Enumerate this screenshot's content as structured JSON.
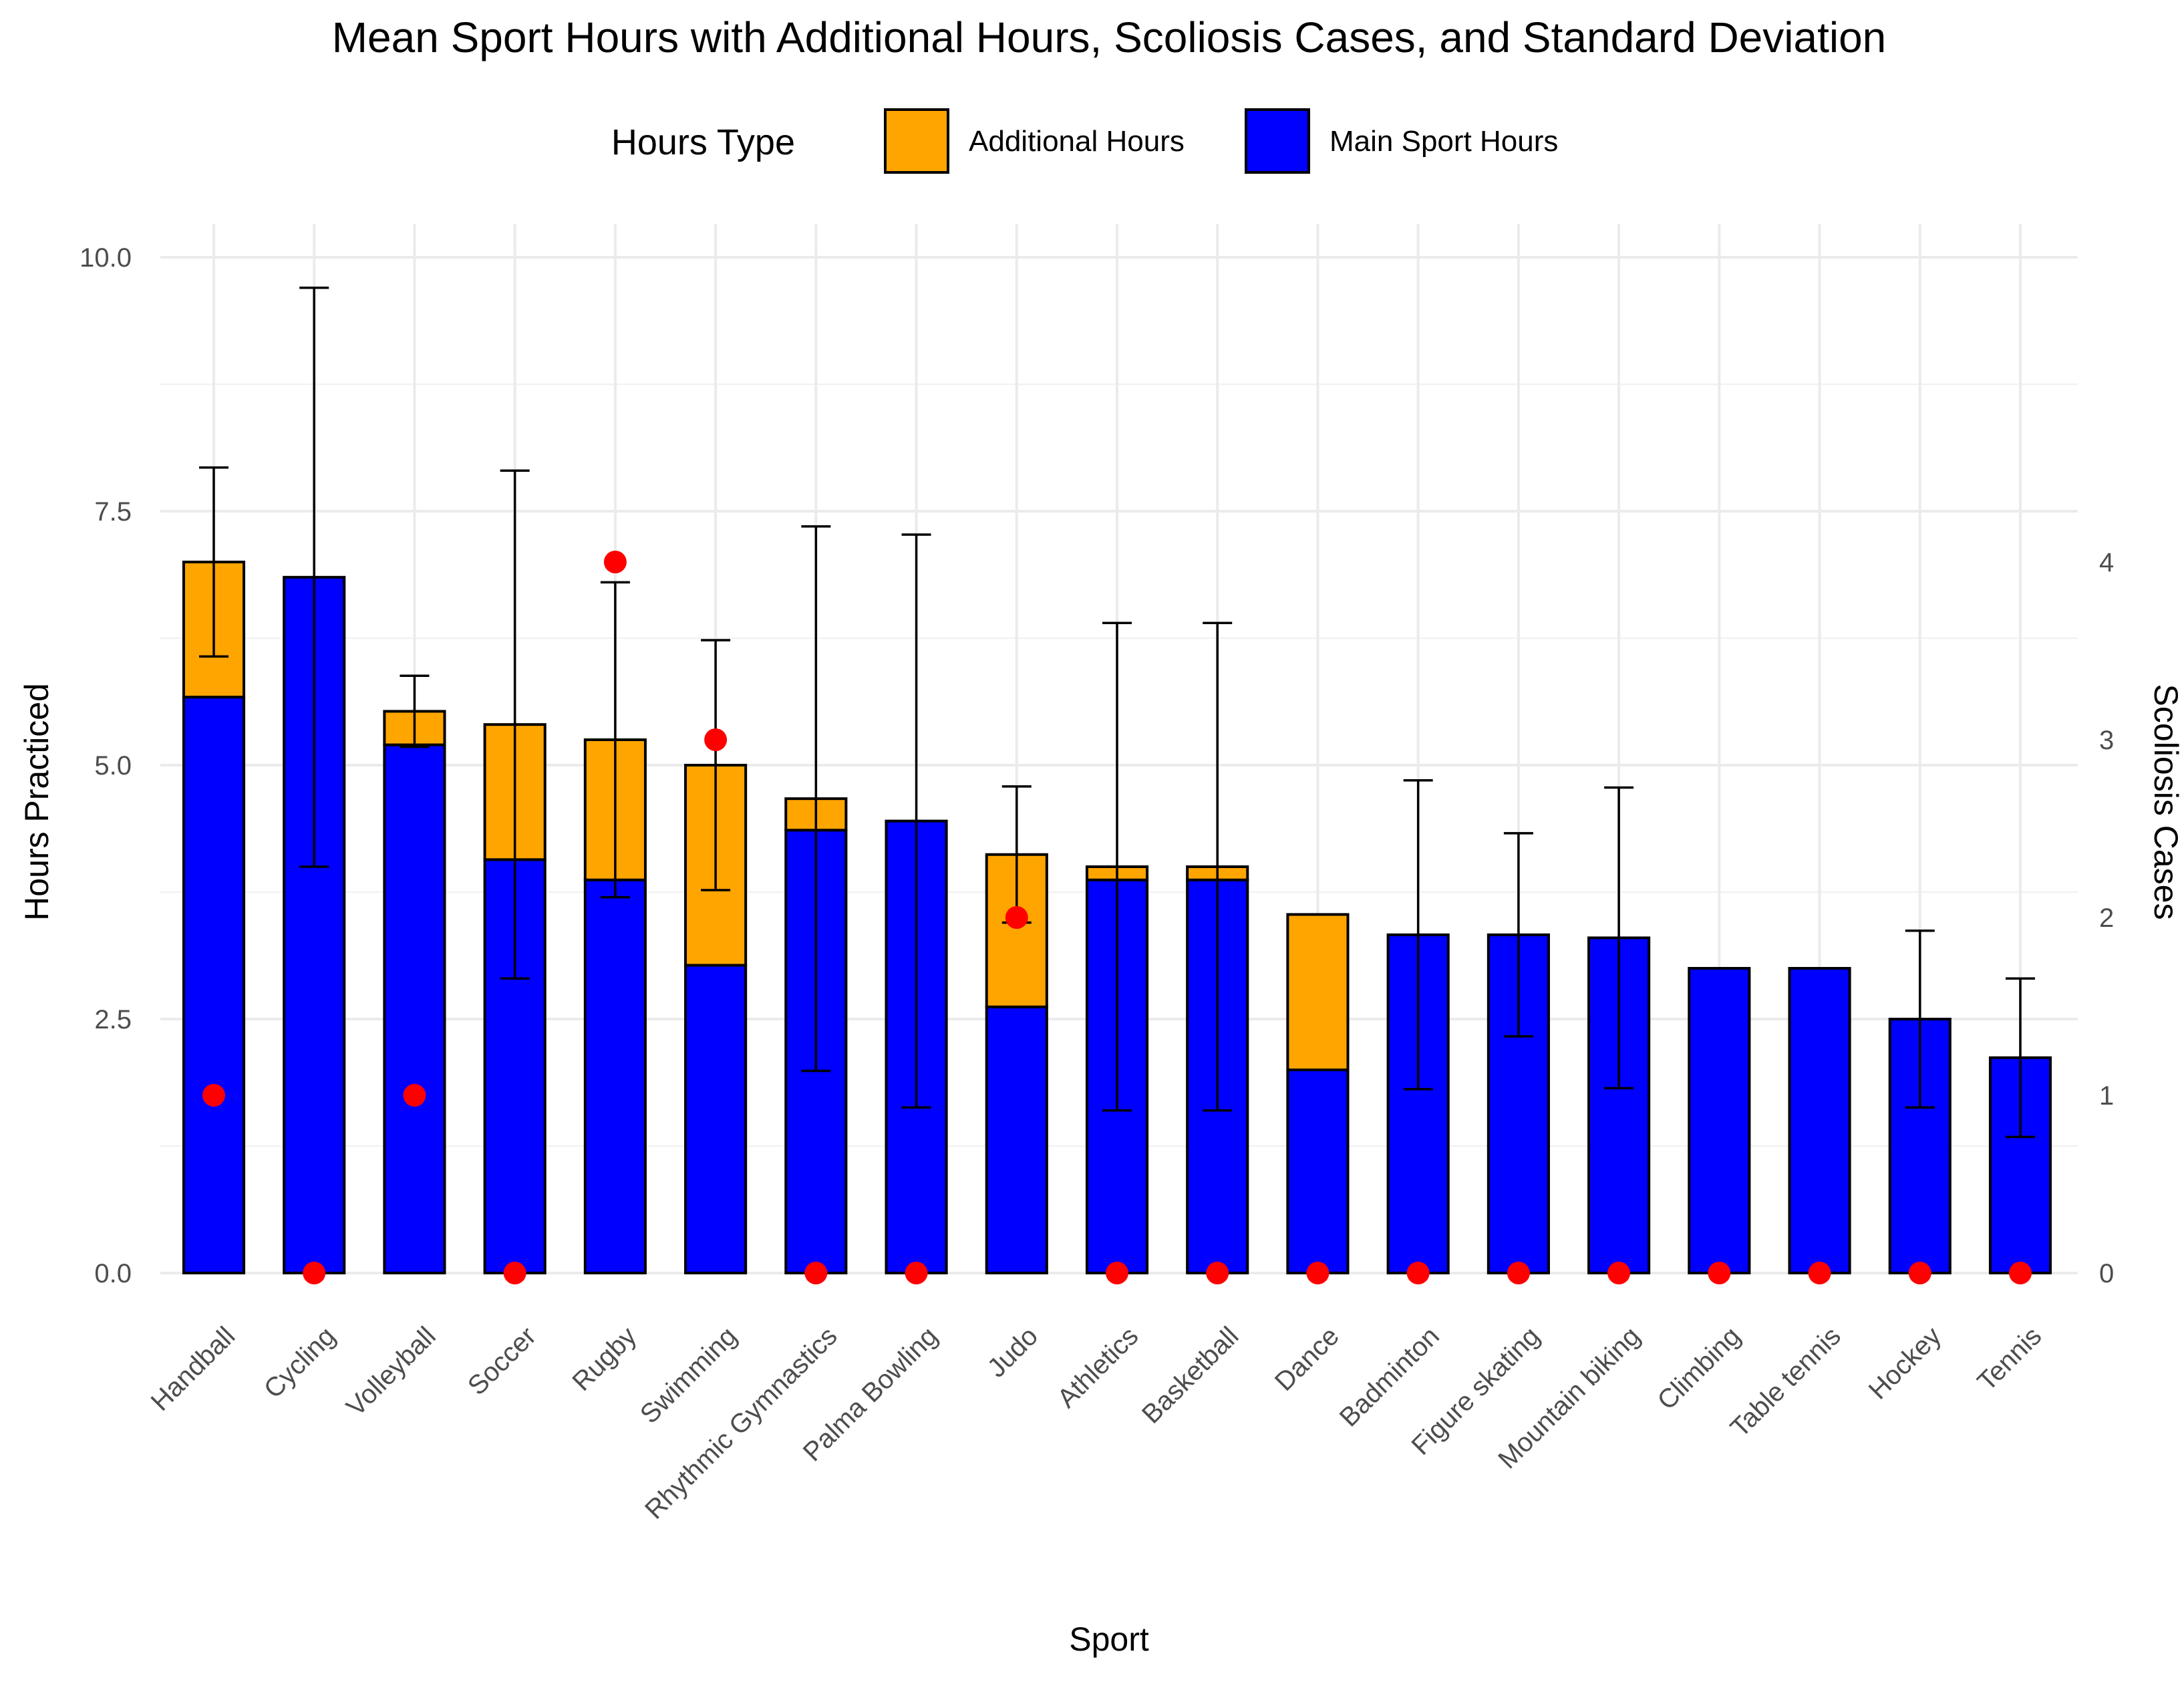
{
  "chart_data": {
    "type": "bar",
    "title": "Mean Sport Hours with Additional Hours, Scoliosis Cases, and Standard Deviation",
    "xlabel": "Sport",
    "ylabel": "Hours Practiced",
    "y2label": "Scoliosis Cases",
    "ylim": [
      0,
      10
    ],
    "y_ticks": [
      "0.0",
      "2.5",
      "5.0",
      "7.5",
      "10.0"
    ],
    "y2_ticks": [
      "0",
      "1",
      "2",
      "3",
      "4"
    ],
    "y2_scale": 1.75,
    "legend": {
      "title": "Hours Type",
      "position": "top",
      "items": [
        {
          "label": "Additional Hours",
          "color": "#FFA500"
        },
        {
          "label": "Main Sport Hours",
          "color": "#0000FF"
        }
      ]
    },
    "point_color": "#FF0000",
    "categories": [
      "Handball",
      "Cycling",
      "Volleyball",
      "Soccer",
      "Rugby",
      "Swimming",
      "Rhythmic Gymnastics",
      "Palma Bowling",
      "Judo",
      "Athletics",
      "Basketball",
      "Dance",
      "Badminton",
      "Figure skating",
      "Mountain biking",
      "Climbing",
      "Table tennis",
      "Hockey",
      "Tennis"
    ],
    "series": [
      {
        "name": "Main Sport Hours",
        "values": [
          5.67,
          6.85,
          5.2,
          4.07,
          3.87,
          3.03,
          4.36,
          4.45,
          2.62,
          3.87,
          3.87,
          2.0,
          3.33,
          3.33,
          3.3,
          3.0,
          3.0,
          2.5,
          2.12
        ]
      },
      {
        "name": "Additional Hours",
        "values": [
          1.33,
          0.0,
          0.33,
          1.33,
          1.38,
          1.97,
          0.31,
          0.0,
          1.5,
          0.13,
          0.13,
          1.53,
          0.0,
          0.0,
          0.0,
          0.0,
          0.0,
          0.0,
          0.0
        ]
      }
    ],
    "error_bars": {
      "name": "Standard Deviation",
      "centers": [
        7.0,
        6.85,
        5.53,
        5.4,
        5.25,
        5.0,
        4.67,
        4.45,
        4.12,
        4.0,
        4.0,
        null,
        3.33,
        3.33,
        3.3,
        null,
        null,
        2.5,
        2.12
      ],
      "sd": [
        0.93,
        2.85,
        0.35,
        2.5,
        1.55,
        1.23,
        2.68,
        2.82,
        0.67,
        2.4,
        2.4,
        null,
        1.52,
        1.0,
        1.48,
        null,
        null,
        0.87,
        0.78
      ]
    },
    "scoliosis_cases": [
      1,
      0,
      1,
      0,
      4,
      3,
      0,
      0,
      2,
      0,
      0,
      0,
      0,
      0,
      0,
      0,
      0,
      0,
      0
    ]
  }
}
